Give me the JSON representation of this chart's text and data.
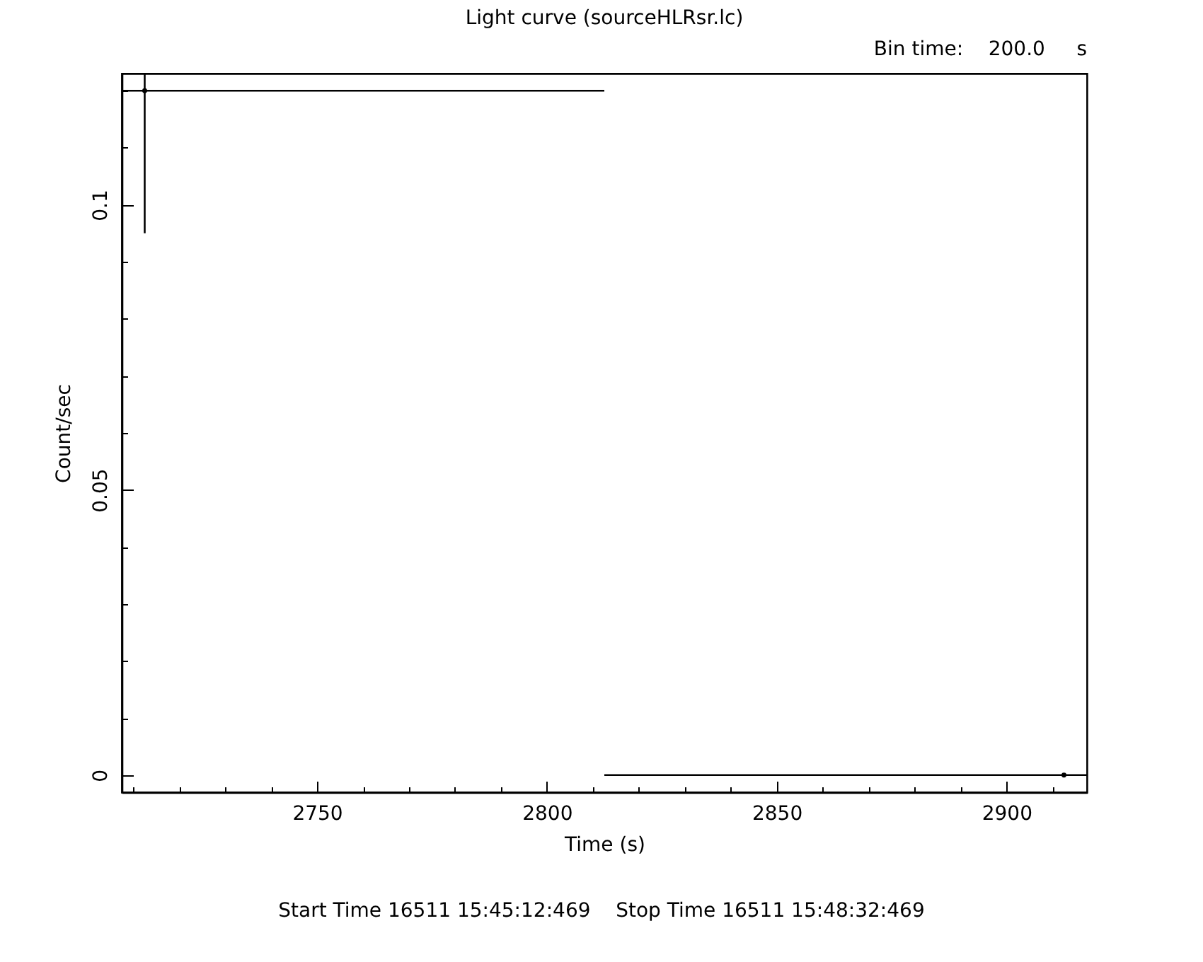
{
  "chart_data": {
    "type": "scatter",
    "title": "Light curve (sourceHLRsr.lc)",
    "subtitle": "Bin time:    200.0     s",
    "xlabel": "Time (s)",
    "ylabel": "Count/sec",
    "annotations": [
      "Start Time 16511 15:45:12:469    Stop Time 16511 15:48:32:469"
    ],
    "marker": "none",
    "grid": false,
    "x": [
      2712.5,
      2912.5
    ],
    "series": [
      {
        "color": "#000000",
        "values": [
          0.12,
          0
        ],
        "errors": [
          0.025,
          0
        ],
        "xerrors": [
          [
            2707.5,
            2812.5
          ],
          [
            2812.5,
            2917.5
          ]
        ]
      }
    ],
    "xlim": [
      2707.5,
      2917.5
    ],
    "xticks": [
      {
        "value": 2710,
        "label": null
      },
      {
        "value": 2720,
        "label": null
      },
      {
        "value": 2730,
        "label": null
      },
      {
        "value": 2740,
        "label": null
      },
      2750,
      {
        "value": 2760,
        "label": null
      },
      {
        "value": 2770,
        "label": null
      },
      {
        "value": 2780,
        "label": null
      },
      {
        "value": 2790,
        "label": null
      },
      2800,
      {
        "value": 2810,
        "label": null
      },
      {
        "value": 2820,
        "label": null
      },
      {
        "value": 2830,
        "label": null
      },
      {
        "value": 2840,
        "label": null
      },
      2850,
      {
        "value": 2860,
        "label": null
      },
      {
        "value": 2870,
        "label": null
      },
      {
        "value": 2880,
        "label": null
      },
      {
        "value": 2890,
        "label": null
      },
      2900,
      {
        "value": 2910,
        "label": null
      }
    ],
    "ylim": [
      -0.003,
      0.123
    ],
    "yticks": [
      0,
      {
        "value": 0.01,
        "label": null
      },
      {
        "value": 0.02,
        "label": null
      },
      {
        "value": 0.03,
        "label": null
      },
      {
        "value": 0.04,
        "label": null
      },
      0.05,
      {
        "value": 0.06,
        "label": null
      },
      {
        "value": 0.07,
        "label": null
      },
      {
        "value": 0.08,
        "label": null
      },
      {
        "value": 0.09,
        "label": null
      },
      0.1,
      {
        "value": 0.11,
        "label": null
      },
      {
        "value": 0.12,
        "label": null
      }
    ]
  }
}
